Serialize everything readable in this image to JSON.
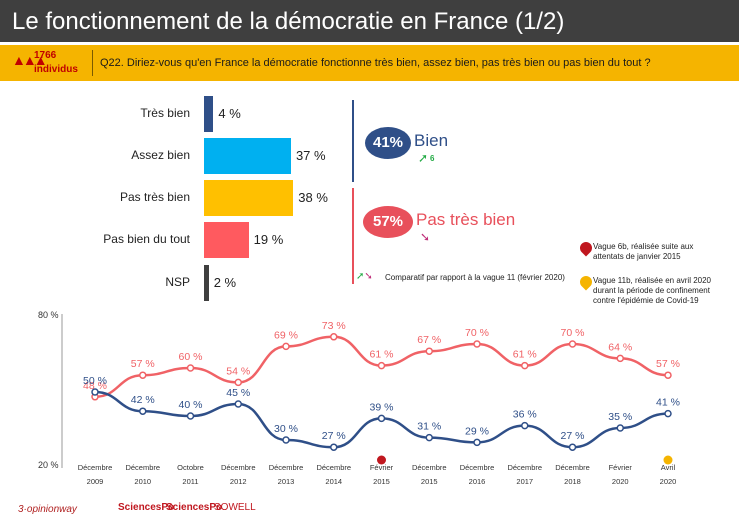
{
  "header": {
    "title": "Le fonctionnement de la démocratie en France (1/2)"
  },
  "sample": {
    "count": "1766",
    "label": "individus"
  },
  "question": {
    "text": "Q22. Diriez-vous qu'en France la démocratie fonctionne très bien, assez bien, pas très bien ou pas bien du tout ?"
  },
  "summary": {
    "bien_pct": "41%",
    "bien_label": "Bien",
    "bien_change": "6",
    "pas_pct": "57%",
    "pas_label": "Pas très bien",
    "compare_text": "Comparatif par rapport à la vague 11 (février 2020)"
  },
  "notes": {
    "note1": "Vague 6b, réalisée suite aux attentats de janvier 2015",
    "note2": "Vague 11b, réalisée en avril 2020 durant la période de confinement contre l'épidémie de Covid-19"
  },
  "colors": {
    "tres_bien": "#2f4f88",
    "assez_bien": "#00b0f0",
    "pas_tres_bien": "#ffc000",
    "pas_bien_du_tout": "#ff5a5f",
    "nsp": "#3f3f3f",
    "line_blue": "#2f4f88",
    "line_red": "#f06266"
  },
  "chart_data": [
    {
      "type": "bar",
      "orientation": "horizontal",
      "categories": [
        "Très bien",
        "Assez bien",
        "Pas très bien",
        "Pas bien du tout",
        "NSP"
      ],
      "values": [
        4,
        37,
        38,
        19,
        2
      ],
      "value_labels": [
        "4 %",
        "37 %",
        "38 %",
        "19 %",
        "2 %"
      ]
    },
    {
      "type": "line",
      "categories": [
        "Décembre 2009",
        "Décembre 2010",
        "Octobre 2011",
        "Décembre 2012",
        "Décembre 2013",
        "Décembre 2014",
        "Février 2015",
        "Décembre 2015",
        "Décembre 2016",
        "Décembre 2017",
        "Décembre 2018",
        "Février 2020",
        "Avril 2020"
      ],
      "x_months": [
        "Décembre",
        "Décembre",
        "Octobre",
        "Décembre",
        "Décembre",
        "Décembre",
        "Février",
        "Décembre",
        "Décembre",
        "Décembre",
        "Décembre",
        "Février",
        "Avril"
      ],
      "x_years": [
        "2009",
        "2010",
        "2011",
        "2012",
        "2013",
        "2014",
        "2015",
        "2015",
        "2016",
        "2017",
        "2018",
        "2020",
        "2020"
      ],
      "ylim": [
        20,
        80
      ],
      "ytick_labels": [
        "80 %",
        "20 %"
      ],
      "series": [
        {
          "values": [
            48,
            57,
            60,
            54,
            69,
            73,
            61,
            67,
            70,
            61,
            70,
            64,
            57
          ],
          "labels": [
            "48 %",
            "57 %",
            "60 %",
            "54 %",
            "69 %",
            "73 %",
            "61 %",
            "67 %",
            "70 %",
            "61 %",
            "70 %",
            "64 %",
            "57 %"
          ]
        },
        {
          "values": [
            50,
            42,
            40,
            45,
            30,
            27,
            39,
            31,
            29,
            36,
            27,
            35,
            41
          ],
          "labels": [
            "50 %",
            "42 %",
            "40 %",
            "45 %",
            "30 %",
            "27 %",
            "39 %",
            "31 %",
            "29 %",
            "36 %",
            "27 %",
            "35 %",
            "41 %"
          ]
        }
      ]
    }
  ],
  "footer": {
    "logo1": "3·opinionway",
    "logo2": "SciencesPo",
    "logo3": "SciencesPo",
    "logo4": "SOWELL"
  }
}
